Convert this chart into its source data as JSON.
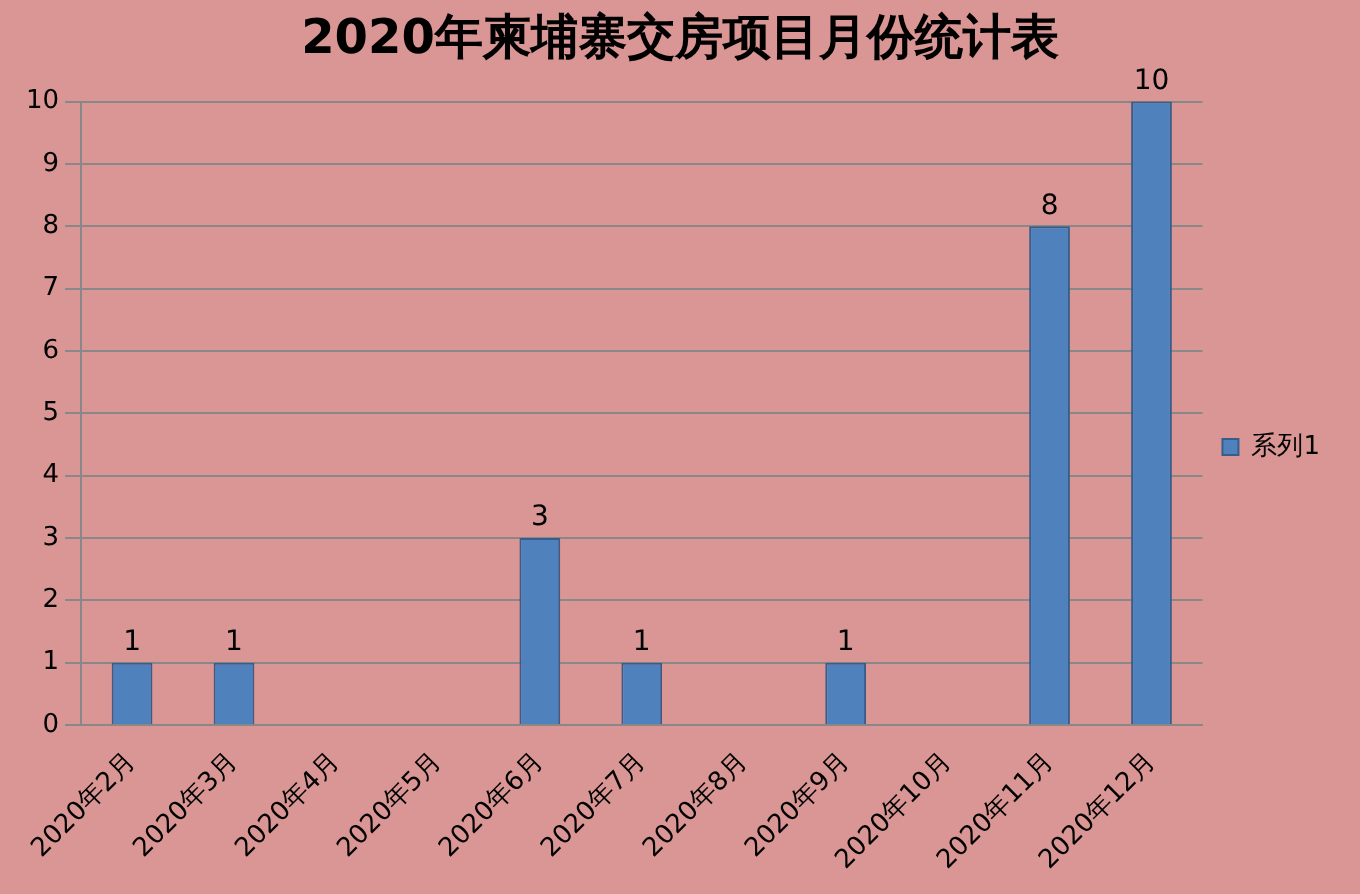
{
  "chart_data": {
    "type": "bar",
    "title": "2020年柬埔寨交房项目月份统计表",
    "categories": [
      "2020年2月",
      "2020年3月",
      "2020年4月",
      "2020年5月",
      "2020年6月",
      "2020年7月",
      "2020年8月",
      "2020年9月",
      "2020年10月",
      "2020年11月",
      "2020年12月"
    ],
    "series": [
      {
        "name": "系列1",
        "color": "#4f81bd",
        "values": [
          1,
          1,
          null,
          null,
          3,
          1,
          null,
          1,
          null,
          8,
          10
        ]
      }
    ],
    "ylim": [
      0,
      10
    ],
    "yticks": [
      0,
      1,
      2,
      3,
      4,
      5,
      6,
      7,
      8,
      9,
      10
    ],
    "grid": "y",
    "legend": "right",
    "data_labels": true
  }
}
